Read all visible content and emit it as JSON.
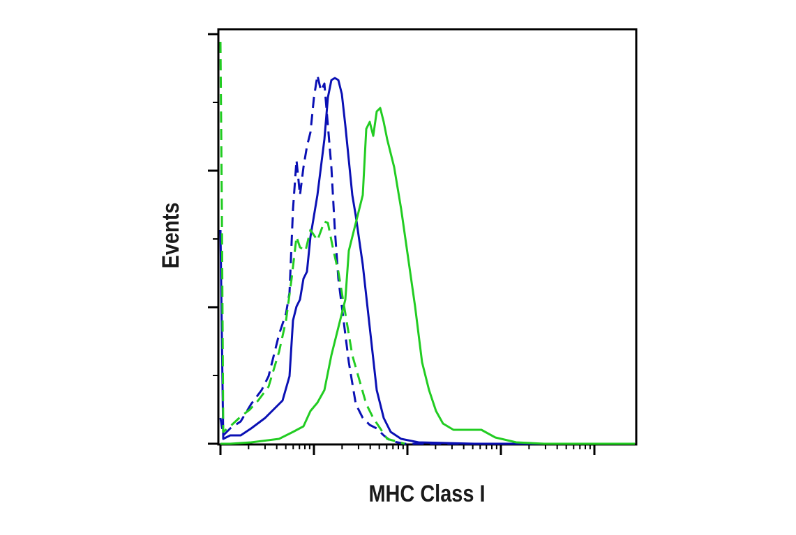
{
  "chart_data": {
    "type": "line",
    "x_label": "MHC Class I",
    "y_label": "Events",
    "xlim": [
      0,
      594
    ],
    "ylim": [
      0,
      594
    ],
    "xticks": [
      0,
      134,
      268,
      402,
      536
    ],
    "yticks": [
      0,
      196,
      392,
      588
    ],
    "series": [
      {
        "color": "#0a10b4",
        "dashed": false,
        "x": [
          0,
          4,
          14,
          29,
          44,
          64,
          79,
          89,
          99,
          104,
          109,
          114,
          119,
          124,
          129,
          139,
          149,
          154,
          159,
          164,
          169,
          174,
          179,
          184,
          189,
          194,
          204,
          214,
          224,
          234,
          244,
          259,
          284,
          364,
          594
        ],
        "values": [
          307,
          7,
          12,
          12,
          22,
          37,
          52,
          62,
          97,
          177,
          197,
          207,
          237,
          247,
          297,
          357,
          437,
          497,
          522,
          525,
          522,
          502,
          457,
          407,
          357,
          327,
          257,
          167,
          77,
          37,
          17,
          7,
          2,
          0,
          0
        ]
      },
      {
        "color": "#0a10b4",
        "dashed": true,
        "x": [
          0,
          4,
          14,
          29,
          44,
          59,
          69,
          84,
          94,
          99,
          104,
          109,
          114,
          119,
          124,
          129,
          134,
          139,
          144,
          149,
          154,
          159,
          164,
          169,
          174,
          184,
          194,
          204,
          214,
          224,
          234,
          244,
          264,
          594
        ],
        "values": [
          37,
          12,
          22,
          32,
          57,
          77,
          97,
          157,
          187,
          217,
          337,
          407,
          357,
          397,
          427,
          447,
          497,
          529,
          507,
          517,
          457,
          397,
          307,
          237,
          197,
          117,
          57,
          37,
          27,
          22,
          12,
          4,
          0,
          0
        ]
      },
      {
        "color": "#22cc22",
        "dashed": false,
        "x": [
          0,
          14,
          44,
          84,
          104,
          119,
          129,
          139,
          149,
          159,
          169,
          179,
          184,
          194,
          204,
          209,
          214,
          219,
          224,
          229,
          234,
          239,
          249,
          259,
          269,
          279,
          289,
          299,
          309,
          319,
          334,
          374,
          394,
          424,
          464,
          594
        ],
        "values": [
          0,
          0,
          2,
          7,
          17,
          25,
          47,
          59,
          77,
          127,
          167,
          207,
          277,
          317,
          357,
          452,
          462,
          442,
          477,
          482,
          462,
          437,
          397,
          337,
          267,
          197,
          117,
          77,
          47,
          29,
          20,
          20,
          9,
          2,
          0,
          0
        ]
      },
      {
        "color": "#22cc22",
        "dashed": true,
        "x": [
          0,
          2,
          4,
          14,
          29,
          42,
          54,
          69,
          84,
          94,
          102,
          109,
          114,
          122,
          129,
          139,
          149,
          154,
          162,
          169,
          179,
          189,
          199,
          209,
          219,
          229,
          239,
          264
        ],
        "values": [
          577,
          337,
          17,
          25,
          39,
          49,
          62,
          82,
          132,
          177,
          237,
          297,
          282,
          277,
          307,
          292,
          319,
          317,
          277,
          247,
          187,
          127,
          92,
          57,
          37,
          22,
          7,
          0
        ]
      }
    ]
  }
}
